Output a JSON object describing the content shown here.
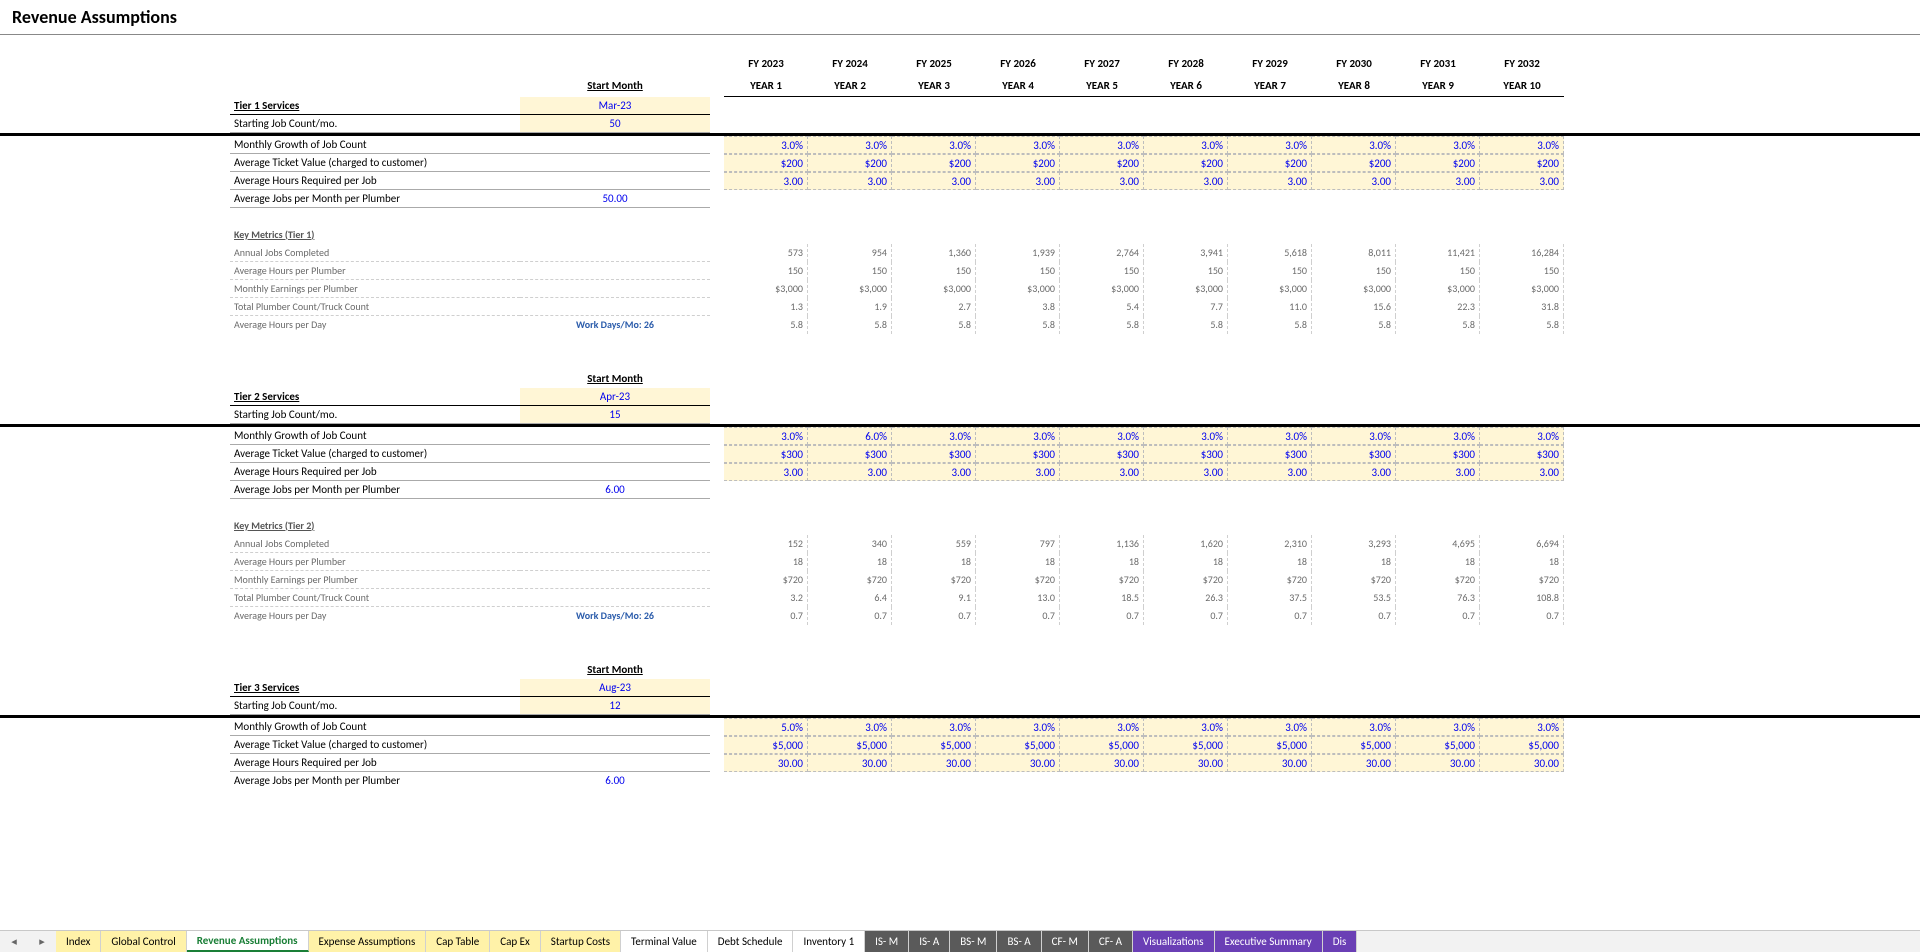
{
  "title": "Revenue Assumptions",
  "fiscal_years": [
    "FY 2023",
    "FY 2024",
    "FY 2025",
    "FY 2026",
    "FY 2027",
    "FY 2028",
    "FY 2029",
    "FY 2030",
    "FY 2031",
    "FY 2032"
  ],
  "year_labels": [
    "YEAR 1",
    "YEAR 2",
    "YEAR 3",
    "YEAR 4",
    "YEAR 5",
    "YEAR 6",
    "YEAR 7",
    "YEAR 8",
    "YEAR 9",
    "YEAR 10"
  ],
  "start_month_header": "Start Month",
  "work_days_label": "Work Days/Mo: 26",
  "tier1": {
    "header": "Tier 1 Services",
    "start_month": "Mar-23",
    "starting_jobs_label": "Starting Job Count/mo.",
    "starting_jobs_value": "50",
    "growth_label": "Monthly Growth of Job Count",
    "growth": [
      "3.0%",
      "3.0%",
      "3.0%",
      "3.0%",
      "3.0%",
      "3.0%",
      "3.0%",
      "3.0%",
      "3.0%",
      "3.0%"
    ],
    "ticket_label": "Average Ticket Value (charged to customer)",
    "ticket": [
      "$200",
      "$200",
      "$200",
      "$200",
      "$200",
      "$200",
      "$200",
      "$200",
      "$200",
      "$200"
    ],
    "hours_label": "Average Hours Required per Job",
    "hours": [
      "3.00",
      "3.00",
      "3.00",
      "3.00",
      "3.00",
      "3.00",
      "3.00",
      "3.00",
      "3.00",
      "3.00"
    ],
    "jobs_per_plumber_label": "Average Jobs per Month per Plumber",
    "jobs_per_plumber_value": "50.00",
    "metrics_header": "Key Metrics (Tier 1)",
    "m": {
      "annual_jobs": {
        "label": "Annual Jobs Completed",
        "v": [
          "573",
          "954",
          "1,360",
          "1,939",
          "2,764",
          "3,941",
          "5,618",
          "8,011",
          "11,421",
          "16,284"
        ]
      },
      "avg_hours": {
        "label": "Average Hours per Plumber",
        "v": [
          "150",
          "150",
          "150",
          "150",
          "150",
          "150",
          "150",
          "150",
          "150",
          "150"
        ]
      },
      "earnings": {
        "label": "Monthly Earnings per Plumber",
        "v": [
          "$3,000",
          "$3,000",
          "$3,000",
          "$3,000",
          "$3,000",
          "$3,000",
          "$3,000",
          "$3,000",
          "$3,000",
          "$3,000"
        ]
      },
      "truck_count": {
        "label": "Total Plumber Count/Truck Count",
        "v": [
          "1.3",
          "1.9",
          "2.7",
          "3.8",
          "5.4",
          "7.7",
          "11.0",
          "15.6",
          "22.3",
          "31.8"
        ]
      },
      "hours_day": {
        "label": "Average Hours per Day",
        "v": [
          "5.8",
          "5.8",
          "5.8",
          "5.8",
          "5.8",
          "5.8",
          "5.8",
          "5.8",
          "5.8",
          "5.8"
        ]
      }
    }
  },
  "tier2": {
    "header": "Tier 2 Services",
    "start_month": "Apr-23",
    "starting_jobs_label": "Starting Job Count/mo.",
    "starting_jobs_value": "15",
    "growth_label": "Monthly Growth of Job Count",
    "growth": [
      "3.0%",
      "6.0%",
      "3.0%",
      "3.0%",
      "3.0%",
      "3.0%",
      "3.0%",
      "3.0%",
      "3.0%",
      "3.0%"
    ],
    "ticket_label": "Average Ticket Value (charged to customer)",
    "ticket": [
      "$300",
      "$300",
      "$300",
      "$300",
      "$300",
      "$300",
      "$300",
      "$300",
      "$300",
      "$300"
    ],
    "hours_label": "Average Hours Required per Job",
    "hours": [
      "3.00",
      "3.00",
      "3.00",
      "3.00",
      "3.00",
      "3.00",
      "3.00",
      "3.00",
      "3.00",
      "3.00"
    ],
    "jobs_per_plumber_label": "Average Jobs per Month per Plumber",
    "jobs_per_plumber_value": "6.00",
    "metrics_header": "Key Metrics (Tier 2)",
    "m": {
      "annual_jobs": {
        "label": "Annual Jobs Completed",
        "v": [
          "152",
          "340",
          "559",
          "797",
          "1,136",
          "1,620",
          "2,310",
          "3,293",
          "4,695",
          "6,694"
        ]
      },
      "avg_hours": {
        "label": "Average Hours per Plumber",
        "v": [
          "18",
          "18",
          "18",
          "18",
          "18",
          "18",
          "18",
          "18",
          "18",
          "18"
        ]
      },
      "earnings": {
        "label": "Monthly Earnings per Plumber",
        "v": [
          "$720",
          "$720",
          "$720",
          "$720",
          "$720",
          "$720",
          "$720",
          "$720",
          "$720",
          "$720"
        ]
      },
      "truck_count": {
        "label": "Total Plumber Count/Truck Count",
        "v": [
          "3.2",
          "6.4",
          "9.1",
          "13.0",
          "18.5",
          "26.3",
          "37.5",
          "53.5",
          "76.3",
          "108.8"
        ]
      },
      "hours_day": {
        "label": "Average Hours per Day",
        "v": [
          "0.7",
          "0.7",
          "0.7",
          "0.7",
          "0.7",
          "0.7",
          "0.7",
          "0.7",
          "0.7",
          "0.7"
        ]
      }
    }
  },
  "tier3": {
    "header": "Tier 3 Services",
    "start_month": "Aug-23",
    "starting_jobs_label": "Starting Job Count/mo.",
    "starting_jobs_value": "12",
    "growth_label": "Monthly Growth of Job Count",
    "growth": [
      "5.0%",
      "3.0%",
      "3.0%",
      "3.0%",
      "3.0%",
      "3.0%",
      "3.0%",
      "3.0%",
      "3.0%",
      "3.0%"
    ],
    "ticket_label": "Average Ticket Value (charged to customer)",
    "ticket": [
      "$5,000",
      "$5,000",
      "$5,000",
      "$5,000",
      "$5,000",
      "$5,000",
      "$5,000",
      "$5,000",
      "$5,000",
      "$5,000"
    ],
    "hours_label": "Average Hours Required per Job",
    "hours": [
      "30.00",
      "30.00",
      "30.00",
      "30.00",
      "30.00",
      "30.00",
      "30.00",
      "30.00",
      "30.00",
      "30.00"
    ],
    "jobs_per_plumber_label": "Average Jobs per Month per Plumber",
    "jobs_per_plumber_value": "6.00"
  },
  "tabs": [
    {
      "label": "Index",
      "cls": "yellow"
    },
    {
      "label": "Global Control",
      "cls": "yellow"
    },
    {
      "label": "Revenue Assumptions",
      "cls": "active"
    },
    {
      "label": "Expense Assumptions",
      "cls": "yellow"
    },
    {
      "label": "Cap Table",
      "cls": "yellow"
    },
    {
      "label": "Cap Ex",
      "cls": "yellow"
    },
    {
      "label": "Startup Costs",
      "cls": "yellow"
    },
    {
      "label": "Terminal Value",
      "cls": ""
    },
    {
      "label": "Debt Schedule",
      "cls": ""
    },
    {
      "label": "Inventory 1",
      "cls": ""
    },
    {
      "label": "IS- M",
      "cls": "dark"
    },
    {
      "label": "IS- A",
      "cls": "dark"
    },
    {
      "label": "BS- M",
      "cls": "dark"
    },
    {
      "label": "BS- A",
      "cls": "dark"
    },
    {
      "label": "CF- M",
      "cls": "dark"
    },
    {
      "label": "CF- A",
      "cls": "dark"
    },
    {
      "label": "Visualizations",
      "cls": "purple"
    },
    {
      "label": "Executive Summary",
      "cls": "purple"
    },
    {
      "label": "Dis",
      "cls": "partial"
    }
  ]
}
